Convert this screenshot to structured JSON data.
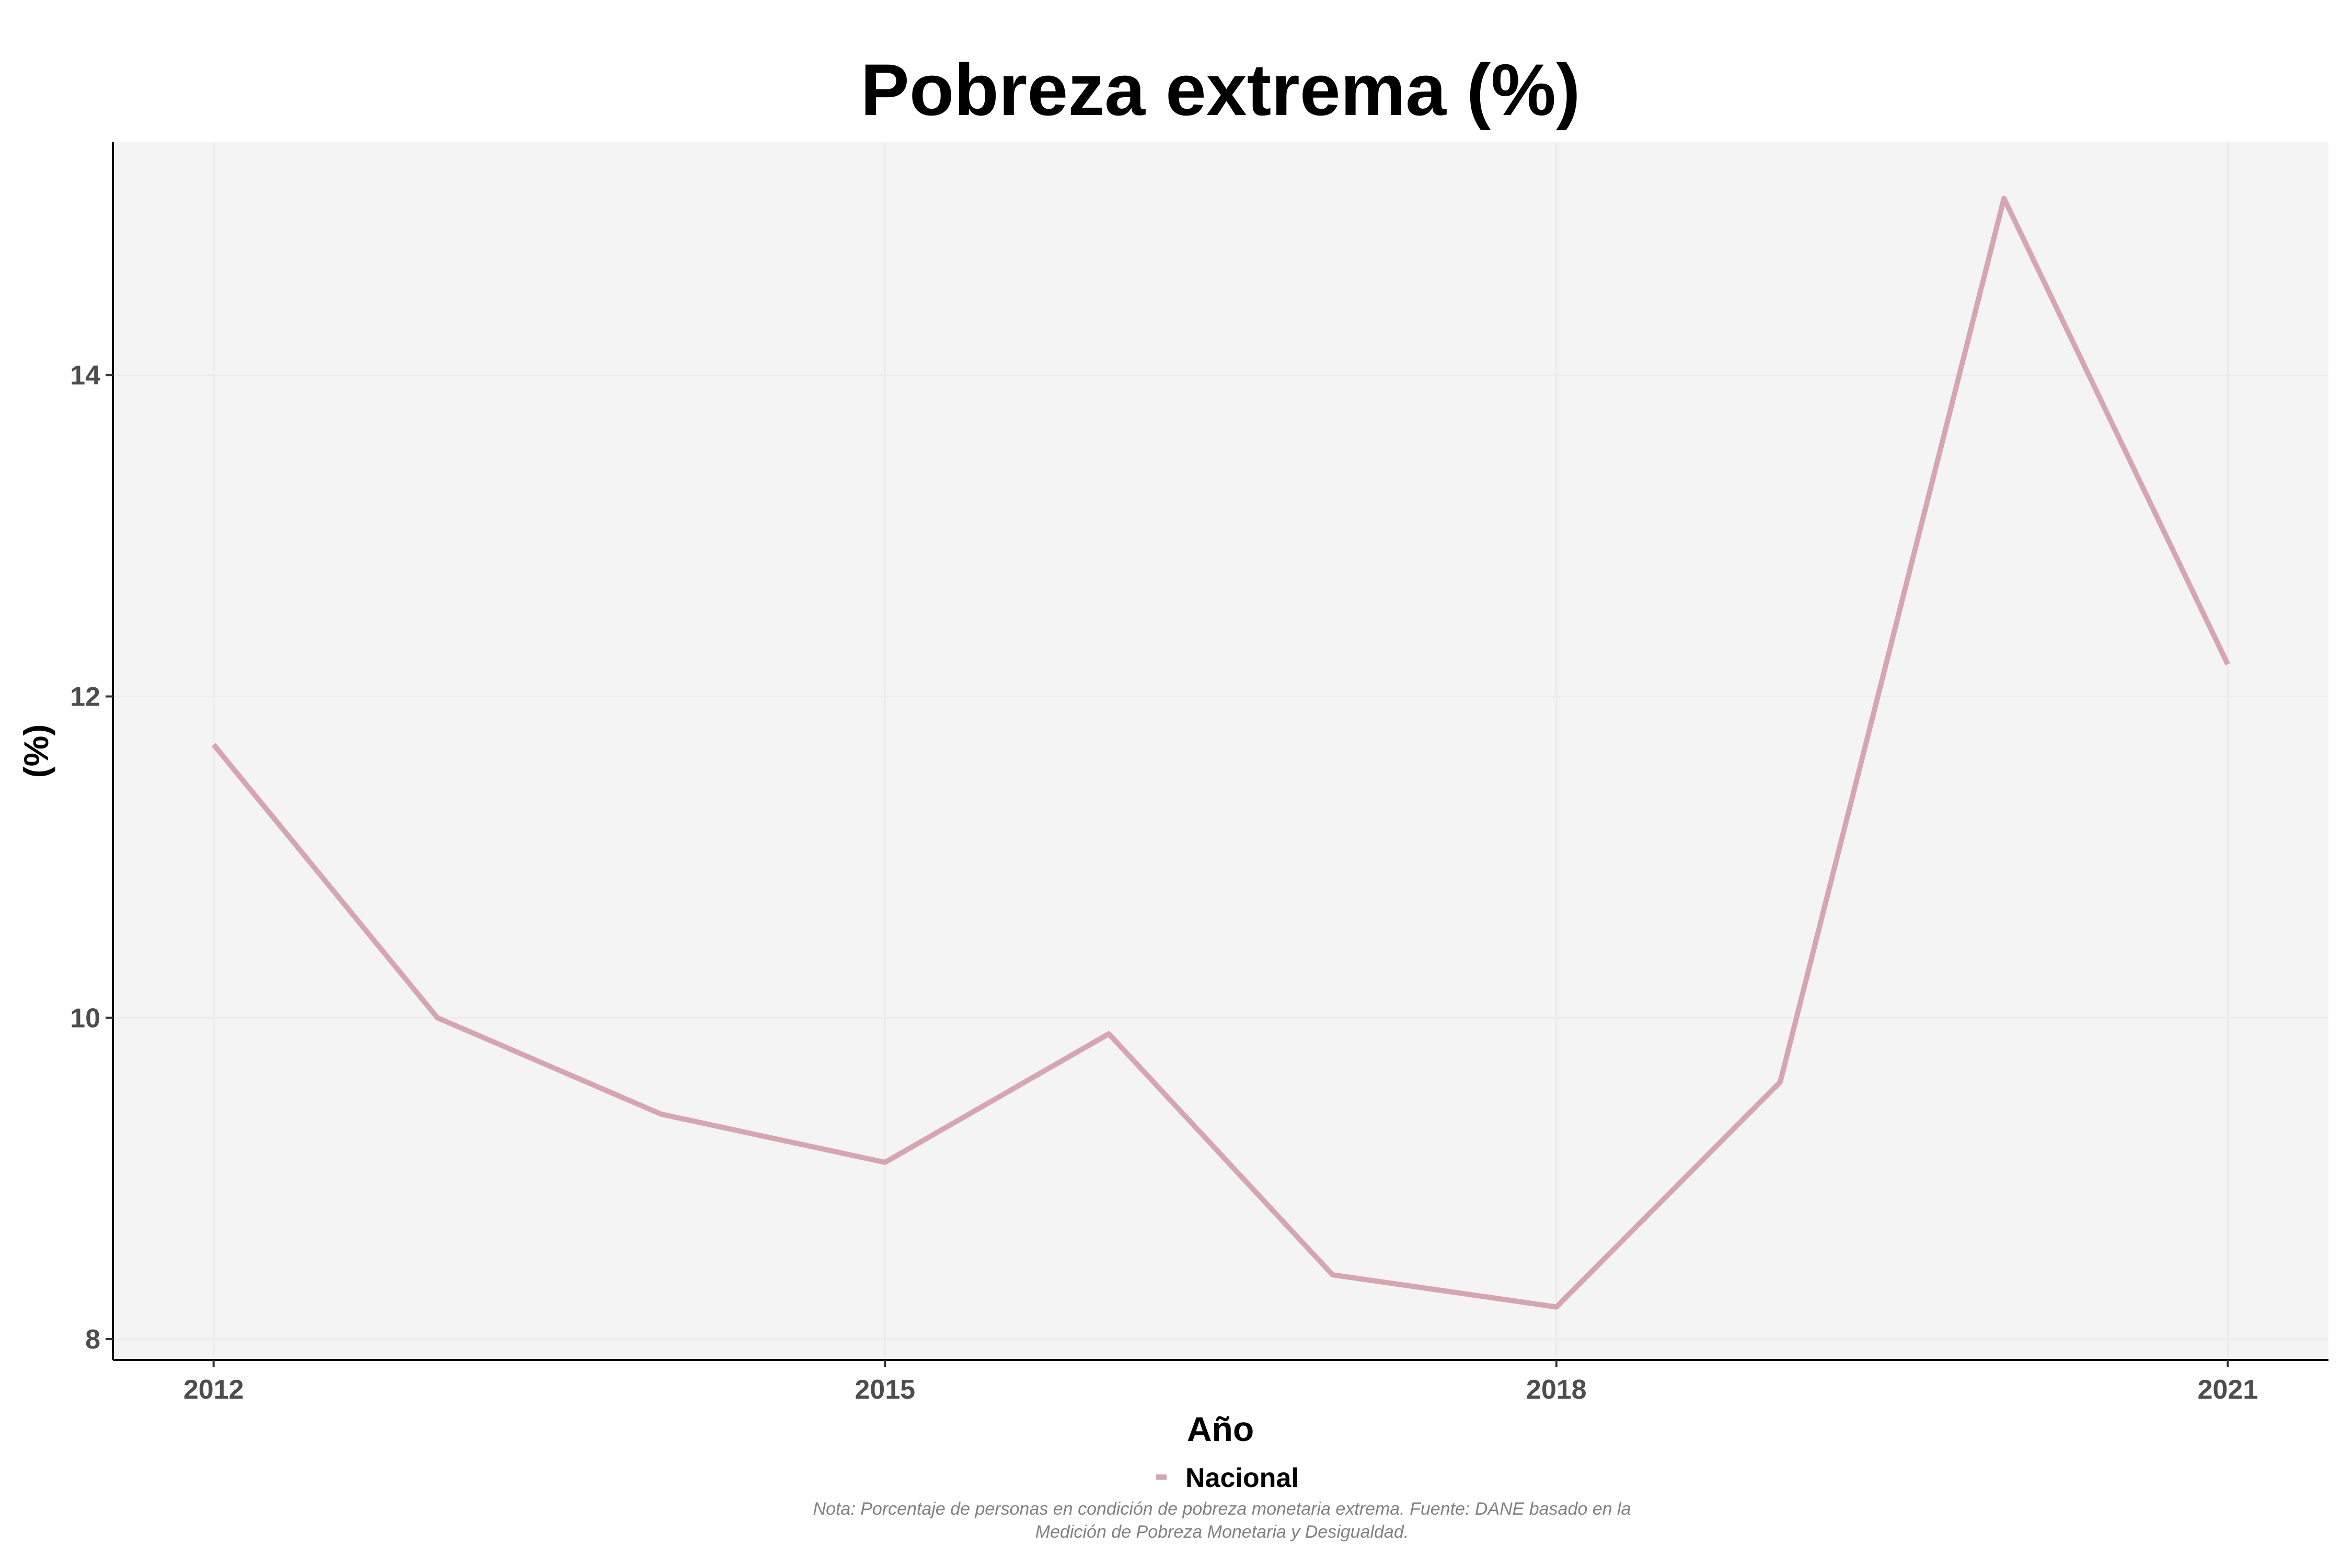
{
  "chart_data": {
    "type": "line",
    "title": "Pobreza extrema (%)",
    "xlabel": "Año",
    "ylabel": "(%)",
    "x": [
      2012,
      2013,
      2014,
      2015,
      2016,
      2017,
      2018,
      2019,
      2020,
      2021
    ],
    "xticks": [
      "2012",
      "2015",
      "2018",
      "2021"
    ],
    "yticks": [
      "8",
      "10",
      "12",
      "14"
    ],
    "xlim": [
      2011.55,
      2021.45
    ],
    "ylim": [
      7.87,
      15.45
    ],
    "grid": true,
    "legend_position": "bottom",
    "series": [
      {
        "name": "Nacional",
        "color": "#d6a5b2",
        "values": [
          11.7,
          10.0,
          9.4,
          9.1,
          9.9,
          8.4,
          8.2,
          9.6,
          15.1,
          12.2
        ]
      }
    ],
    "note": [
      "Nota: Porcentaje de personas en condición de pobreza monetaria extrema. Fuente: DANE basado en la",
      "Medición de Pobreza Monetaria y Desigualdad."
    ]
  }
}
